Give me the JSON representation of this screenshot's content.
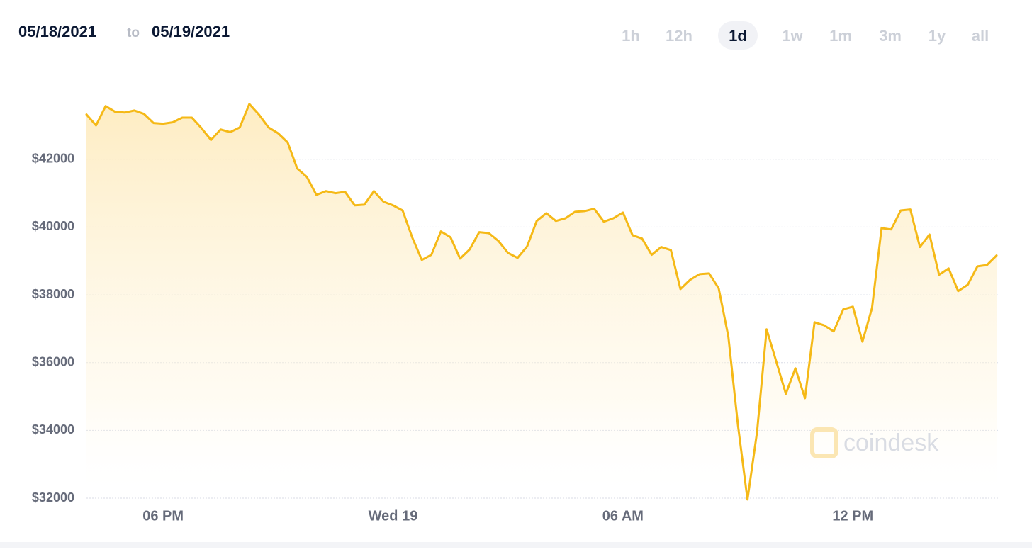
{
  "chart_data": {
    "type": "area",
    "title_from": "05/18/2021",
    "title_joiner": "to",
    "title_to": "05/19/2021",
    "ranges": [
      "1h",
      "12h",
      "1d",
      "1w",
      "1m",
      "3m",
      "1y",
      "all"
    ],
    "selected_range": "1d",
    "watermark": "coindesk",
    "color": "#f5b917",
    "grid": true,
    "categories": [
      null,
      null,
      null,
      null,
      null,
      null,
      null,
      null,
      "06 PM",
      null,
      null,
      null,
      null,
      null,
      null,
      null,
      null,
      null,
      null,
      null,
      null,
      null,
      null,
      null,
      null,
      null,
      null,
      null,
      null,
      null,
      null,
      null,
      "Wed 19",
      null,
      null,
      null,
      null,
      null,
      null,
      null,
      null,
      null,
      null,
      null,
      null,
      null,
      null,
      null,
      null,
      null,
      null,
      null,
      null,
      null,
      null,
      null,
      "06 AM",
      null,
      null,
      null,
      null,
      null,
      null,
      null,
      null,
      null,
      null,
      null,
      null,
      null,
      null,
      null,
      null,
      null,
      null,
      null,
      null,
      null,
      null,
      null,
      "12 PM",
      null,
      null,
      null,
      null,
      null,
      null,
      null,
      null,
      null,
      null,
      null,
      null,
      null,
      null,
      null
    ],
    "values": [
      43320,
      43000,
      43570,
      43400,
      43380,
      43440,
      43340,
      43070,
      43050,
      43090,
      43230,
      43230,
      42920,
      42570,
      42880,
      42800,
      42940,
      43630,
      43320,
      42940,
      42770,
      42500,
      41730,
      41480,
      40950,
      41060,
      41000,
      41040,
      40640,
      40660,
      41060,
      40750,
      40640,
      40490,
      39700,
      39030,
      39180,
      39870,
      39700,
      39070,
      39340,
      39850,
      39820,
      39590,
      39240,
      39090,
      39430,
      40180,
      40410,
      40180,
      40260,
      40450,
      40470,
      40540,
      40160,
      40260,
      40430,
      39760,
      39660,
      39180,
      39410,
      39320,
      38170,
      38440,
      38610,
      38630,
      38190,
      36770,
      34160,
      31960,
      33950,
      36980,
      36040,
      35080,
      35830,
      34950,
      37190,
      37100,
      36920,
      37570,
      37650,
      36620,
      37610,
      39970,
      39930,
      40490,
      40520,
      39410,
      39780,
      38590,
      38780,
      38110,
      38300,
      38840,
      38880,
      39160
    ],
    "ylim": [
      32000,
      44400
    ],
    "yticks": [
      {
        "value": 32000,
        "label": "$32000"
      },
      {
        "value": 34000,
        "label": "$34000"
      },
      {
        "value": 36000,
        "label": "$36000"
      },
      {
        "value": 38000,
        "label": "$38000"
      },
      {
        "value": 40000,
        "label": "$40000"
      },
      {
        "value": 42000,
        "label": "$42000"
      }
    ]
  }
}
